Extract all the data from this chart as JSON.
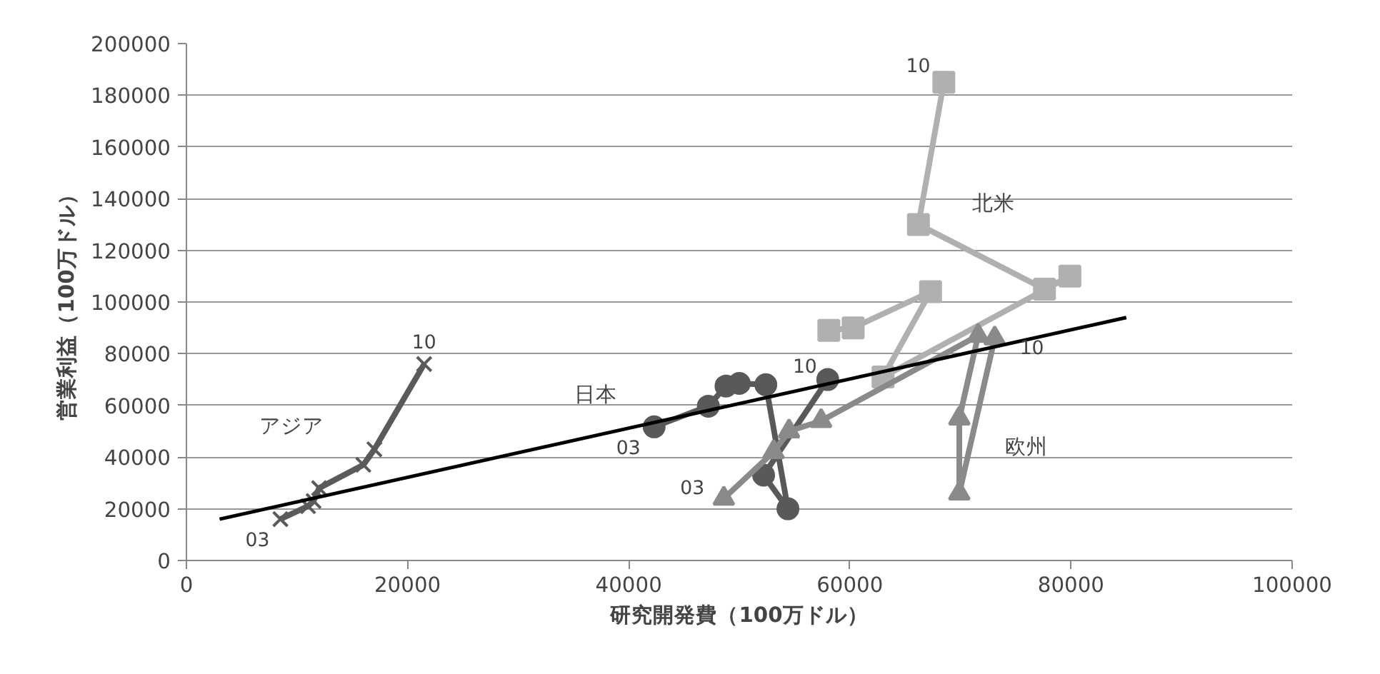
{
  "chart_data": {
    "type": "line",
    "xlabel": "研究開発費（100万ドル）",
    "ylabel": "営業利益（100万ドル）",
    "xlim": [
      0,
      100000
    ],
    "xticks": [
      0,
      20000,
      40000,
      60000,
      80000,
      100000
    ],
    "ylim": [
      0,
      200000
    ],
    "yticks": [
      0,
      20000,
      40000,
      60000,
      80000,
      100000,
      120000,
      140000,
      160000,
      180000,
      200000
    ],
    "grid": "y",
    "line_style": "solid",
    "series": [
      {
        "name": "アジア",
        "color": "#5a5a5a",
        "marker": "cross",
        "x": [
          8500,
          11000,
          11500,
          12000,
          16000,
          17000,
          21500
        ],
        "values": [
          16000,
          21000,
          23000,
          28000,
          37000,
          43000,
          76000
        ]
      },
      {
        "name": "日本",
        "color": "#595959",
        "marker": "circle",
        "x": [
          42300,
          47200,
          48800,
          50000,
          52400,
          54400,
          52200,
          58000
        ],
        "values": [
          51700,
          59700,
          67500,
          68500,
          68000,
          20000,
          33000,
          70000
        ]
      },
      {
        "name": "北米",
        "color": "#b0b0b0",
        "marker": "square",
        "x": [
          58100,
          60300,
          67300,
          63000,
          79900,
          77600,
          66200,
          68500
        ],
        "values": [
          89000,
          90000,
          104000,
          71000,
          110000,
          105000,
          130000,
          185000
        ]
      },
      {
        "name": "欧州",
        "color": "#8a8a8a",
        "marker": "triangle",
        "x": [
          48600,
          53100,
          54500,
          57400,
          71600,
          69900,
          69900,
          73100
        ],
        "values": [
          24000,
          42000,
          50000,
          54000,
          87000,
          55000,
          26000,
          86000
        ]
      },
      {
        "type": "line",
        "color": "#000000",
        "marker": "none",
        "x": [
          3000,
          85000
        ],
        "values": [
          16000,
          94000
        ]
      }
    ],
    "annotations": [
      {
        "text": "03",
        "x": 8500,
        "y": 16000
      },
      {
        "text": "10",
        "x": 21500,
        "y": 76000
      },
      {
        "text": "03",
        "x": 42300,
        "y": 51700
      },
      {
        "text": "10",
        "x": 58000,
        "y": 70000
      },
      {
        "text": "10",
        "x": 68500,
        "y": 185000
      },
      {
        "text": "03",
        "x": 48600,
        "y": 24000
      },
      {
        "text": "10",
        "x": 73100,
        "y": 86000
      }
    ]
  }
}
